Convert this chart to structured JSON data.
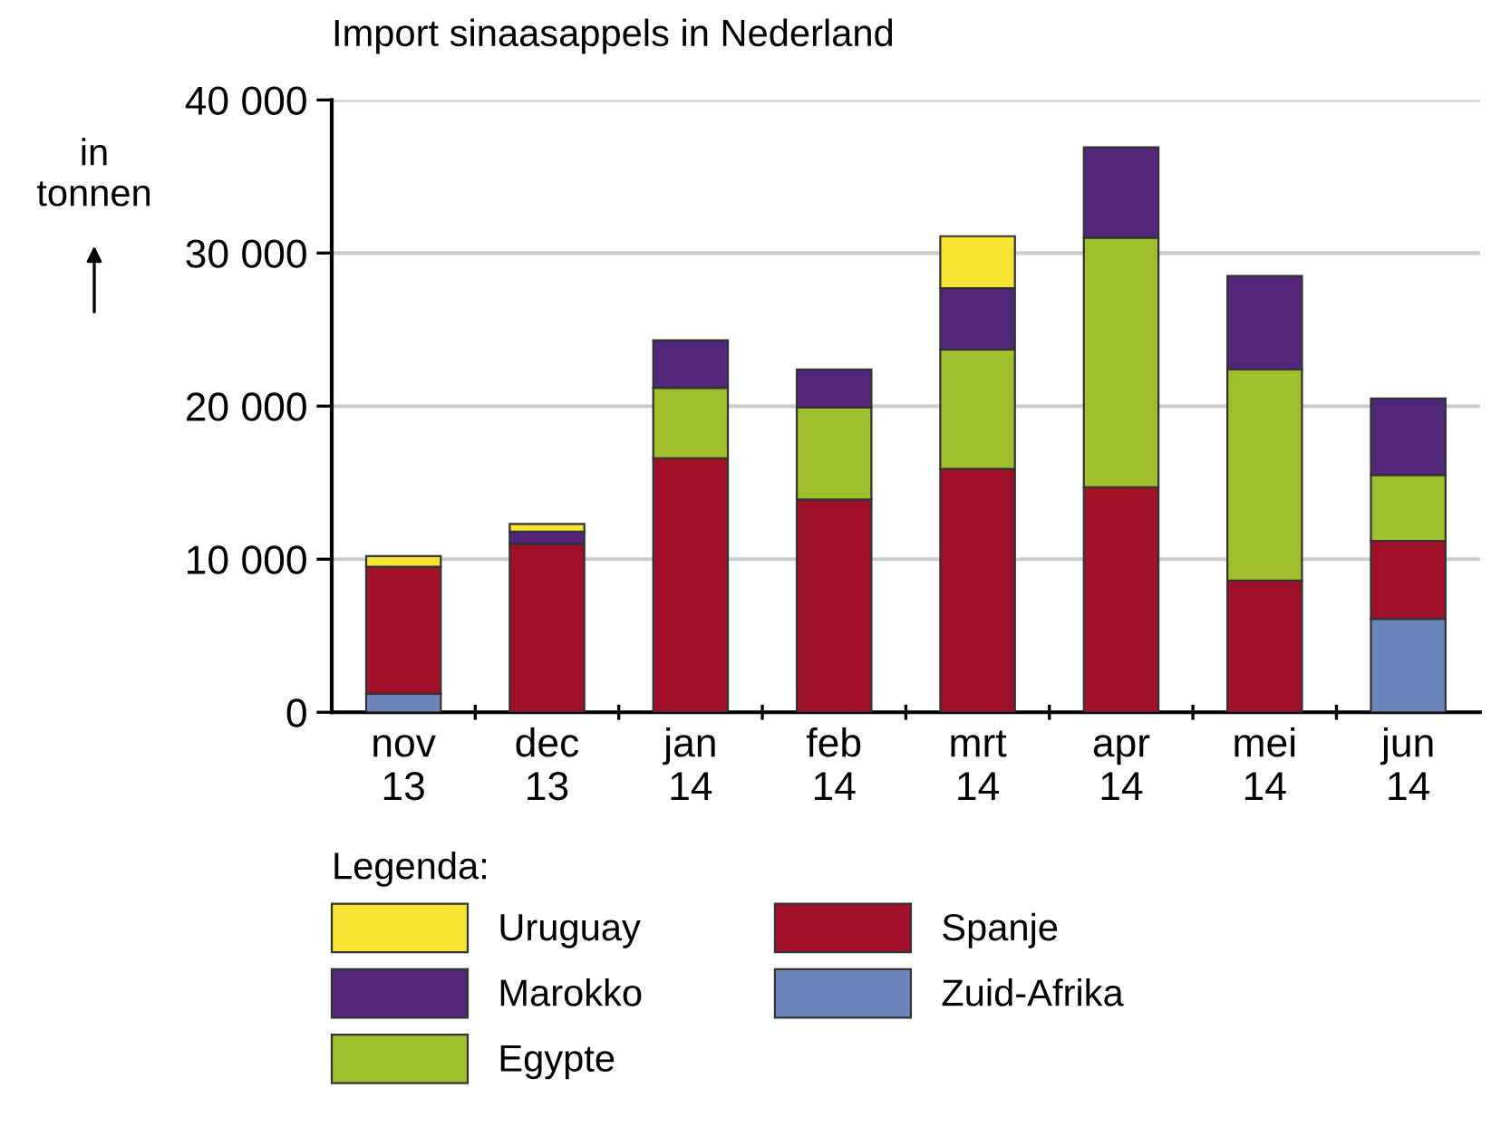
{
  "chart_data": {
    "type": "bar",
    "stacked": true,
    "title": "Import sinaasappels in Nederland",
    "ylabel": "in\ntonnen",
    "legend_title": "Legenda:",
    "categories": [
      "nov\n13",
      "dec\n13",
      "jan\n14",
      "feb\n14",
      "mrt\n14",
      "apr\n14",
      "mei\n14",
      "jun\n14"
    ],
    "series": [
      {
        "name": "Zuid-Afrika",
        "color": "#6b85bb",
        "values": [
          1200,
          null,
          null,
          null,
          null,
          null,
          null,
          6100
        ]
      },
      {
        "name": "Spanje",
        "color": "#a01028",
        "values": [
          8300,
          11000,
          16600,
          13900,
          15900,
          14700,
          8600,
          5100
        ]
      },
      {
        "name": "Egypte",
        "color": "#a0bf2c",
        "values": [
          null,
          null,
          4600,
          6000,
          7800,
          16300,
          13800,
          4300
        ]
      },
      {
        "name": "Marokko",
        "color": "#52267a",
        "values": [
          null,
          800,
          3100,
          2500,
          4000,
          5900,
          6100,
          5000
        ]
      },
      {
        "name": "Uruguay",
        "color": "#f7e332",
        "values": [
          700,
          500,
          null,
          null,
          3400,
          null,
          null,
          null
        ]
      }
    ],
    "ylim": [
      0,
      40000
    ],
    "yticks": [
      0,
      {
        "value": 10000,
        "label": "10 000"
      },
      {
        "value": 20000,
        "label": "20 000"
      },
      {
        "value": 30000,
        "label": "30 000"
      },
      {
        "value": 40000,
        "label": "40 000"
      }
    ],
    "grid": "y",
    "legend": "bottom"
  }
}
